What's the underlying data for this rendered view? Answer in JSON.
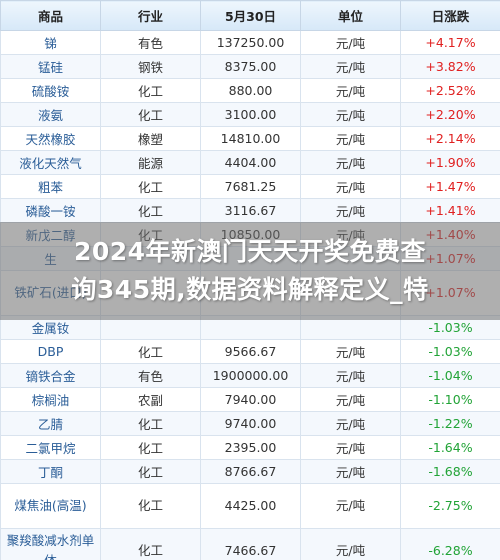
{
  "table": {
    "headers": [
      "商品",
      "行业",
      "5月30日",
      "单位",
      "日涨跌"
    ],
    "rows": [
      {
        "name": "锑",
        "industry": "有色",
        "price": "137250.00",
        "unit": "元/吨",
        "change": "+4.17%",
        "direction": "up"
      },
      {
        "name": "锰硅",
        "industry": "钢铁",
        "price": "8375.00",
        "unit": "元/吨",
        "change": "+3.82%",
        "direction": "up"
      },
      {
        "name": "硫酸铵",
        "industry": "化工",
        "price": "880.00",
        "unit": "元/吨",
        "change": "+2.52%",
        "direction": "up"
      },
      {
        "name": "液氨",
        "industry": "化工",
        "price": "3100.00",
        "unit": "元/吨",
        "change": "+2.20%",
        "direction": "up"
      },
      {
        "name": "天然橡胶",
        "industry": "橡塑",
        "price": "14810.00",
        "unit": "元/吨",
        "change": "+2.14%",
        "direction": "up"
      },
      {
        "name": "液化天然气",
        "industry": "能源",
        "price": "4404.00",
        "unit": "元/吨",
        "change": "+1.90%",
        "direction": "up"
      },
      {
        "name": "粗苯",
        "industry": "化工",
        "price": "7681.25",
        "unit": "元/吨",
        "change": "+1.47%",
        "direction": "up"
      },
      {
        "name": "磷酸一铵",
        "industry": "化工",
        "price": "3116.67",
        "unit": "元/吨",
        "change": "+1.41%",
        "direction": "up"
      },
      {
        "name": "新戊二醇",
        "industry": "化工",
        "price": "10850.00",
        "unit": "元/吨",
        "change": "+1.40%",
        "direction": "up"
      },
      {
        "name": "生",
        "industry": "",
        "price": "",
        "unit": "",
        "change": "+1.07%",
        "direction": "up"
      },
      {
        "name": "铁矿石(进口)",
        "industry": "",
        "price": "",
        "unit": "",
        "change": "+1.07%",
        "direction": "up"
      },
      {
        "name": "金属钕",
        "industry": "",
        "price": "",
        "unit": "",
        "change": "-1.03%",
        "direction": "down"
      },
      {
        "name": "DBP",
        "industry": "化工",
        "price": "9566.67",
        "unit": "元/吨",
        "change": "-1.03%",
        "direction": "down"
      },
      {
        "name": "镝铁合金",
        "industry": "有色",
        "price": "1900000.00",
        "unit": "元/吨",
        "change": "-1.04%",
        "direction": "down"
      },
      {
        "name": "棕榈油",
        "industry": "农副",
        "price": "7940.00",
        "unit": "元/吨",
        "change": "-1.10%",
        "direction": "down"
      },
      {
        "name": "乙腈",
        "industry": "化工",
        "price": "9740.00",
        "unit": "元/吨",
        "change": "-1.22%",
        "direction": "down"
      },
      {
        "name": "二氯甲烷",
        "industry": "化工",
        "price": "2395.00",
        "unit": "元/吨",
        "change": "-1.64%",
        "direction": "down"
      },
      {
        "name": "丁酮",
        "industry": "化工",
        "price": "8766.67",
        "unit": "元/吨",
        "change": "-1.68%",
        "direction": "down"
      },
      {
        "name": "煤焦油(高温)",
        "industry": "化工",
        "price": "4425.00",
        "unit": "元/吨",
        "change": "-2.75%",
        "direction": "down"
      },
      {
        "name": "聚羧酸减水剂单体",
        "industry": "化工",
        "price": "7466.67",
        "unit": "元/吨",
        "change": "-6.28%",
        "direction": "down"
      }
    ]
  },
  "watermark": {
    "line1": "2024年新澳门天天开奖免费查",
    "line2": "询345期,数据资料解释定义_特"
  },
  "colors": {
    "up": "#e02020",
    "down": "#21a336",
    "name": "#2a5d97"
  }
}
